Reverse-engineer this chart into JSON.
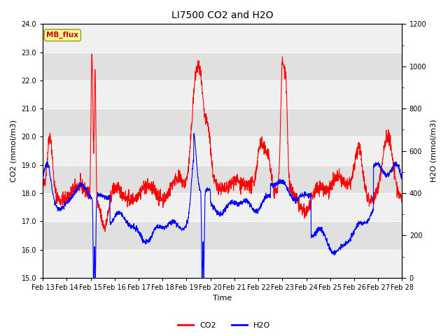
{
  "title": "LI7500 CO2 and H2O",
  "xlabel": "Time",
  "ylabel_left": "CO2 (mmol/m3)",
  "ylabel_right": "H2O (mmol/m3)",
  "co2_ylim": [
    15.0,
    24.0
  ],
  "h2o_ylim": [
    0,
    1200
  ],
  "co2_yticks": [
    15.0,
    16.0,
    17.0,
    18.0,
    19.0,
    20.0,
    21.0,
    22.0,
    23.0,
    24.0
  ],
  "h2o_yticks": [
    0,
    200,
    400,
    600,
    800,
    1000,
    1200
  ],
  "h2o_yticks_minor": [
    100,
    300,
    500,
    700,
    900,
    1100
  ],
  "x_tick_labels": [
    "Feb 13",
    "Feb 14",
    "Feb 15",
    "Feb 16",
    "Feb 17",
    "Feb 18",
    "Feb 19",
    "Feb 20",
    "Feb 21",
    "Feb 22",
    "Feb 23",
    "Feb 24",
    "Feb 25",
    "Feb 26",
    "Feb 27",
    "Feb 28"
  ],
  "co2_color": "#ff0000",
  "h2o_color": "#0000ff",
  "band_colors": [
    "#f0f0f0",
    "#e0e0e0"
  ],
  "annotation_text": "MB_flux",
  "annotation_bg": "#ffff99",
  "annotation_border": "#999900",
  "legend_co2": "CO2",
  "legend_h2o": "H2O",
  "title_fontsize": 10,
  "axis_fontsize": 8,
  "tick_fontsize": 7,
  "legend_fontsize": 8,
  "seed": 42
}
